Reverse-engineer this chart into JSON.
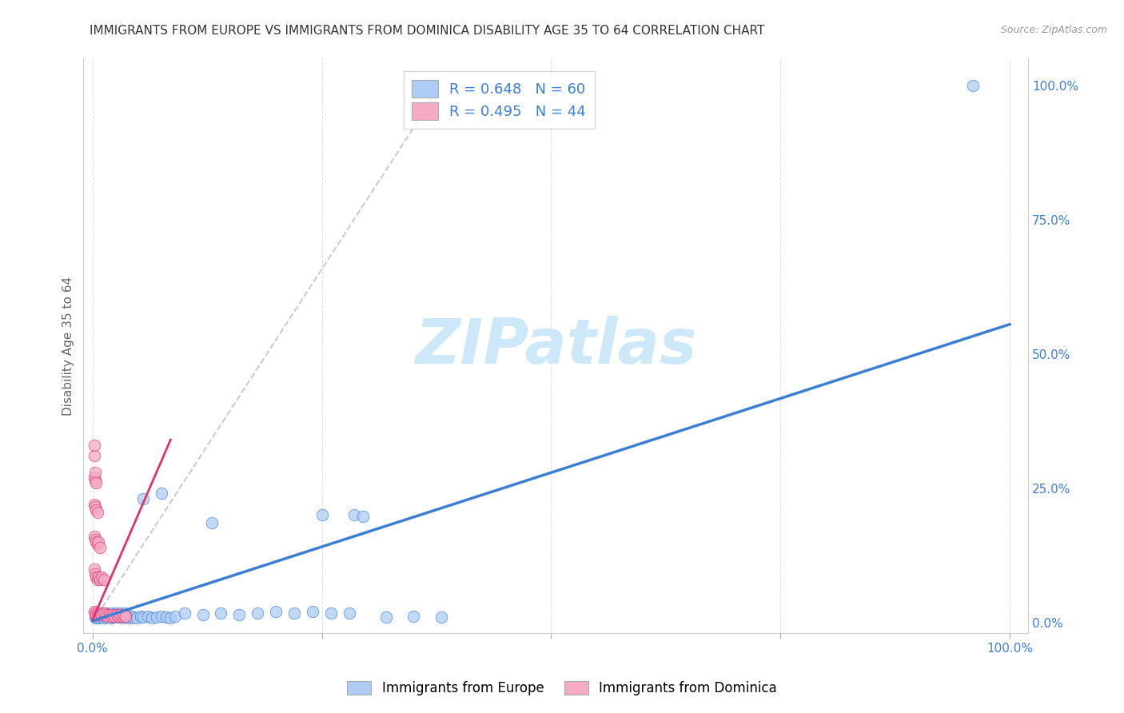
{
  "title": "IMMIGRANTS FROM EUROPE VS IMMIGRANTS FROM DOMINICA DISABILITY AGE 35 TO 64 CORRELATION CHART",
  "source": "Source: ZipAtlas.com",
  "ylabel": "Disability Age 35 to 64",
  "europe_color": "#aeccf5",
  "europe_color_line": "#3a7fd5",
  "dominica_color": "#f5aac5",
  "dominica_color_line": "#e03070",
  "legend_text_color": "#3a7fd5",
  "watermark": "ZIPatlas",
  "watermark_color": "#cde8f8",
  "background_color": "#ffffff",
  "grid_color": "#dddddd",
  "tick_color": "#3a7fd5",
  "ylabel_color": "#666666",
  "title_color": "#333333",
  "source_color": "#999999",
  "diag_line_color": "#cccccc",
  "eu_x": [
    0.003,
    0.004,
    0.005,
    0.006,
    0.007,
    0.008,
    0.01,
    0.012,
    0.015,
    0.018,
    0.02,
    0.022,
    0.025,
    0.028,
    0.032,
    0.035,
    0.038,
    0.04,
    0.042,
    0.045,
    0.048,
    0.052,
    0.055,
    0.06,
    0.065,
    0.07,
    0.075,
    0.08,
    0.085,
    0.09,
    0.01,
    0.012,
    0.015,
    0.018,
    0.02,
    0.022,
    0.025,
    0.028,
    0.03,
    0.035,
    0.055,
    0.075,
    0.13,
    0.25,
    0.285,
    0.295,
    0.1,
    0.12,
    0.14,
    0.16,
    0.18,
    0.2,
    0.22,
    0.24,
    0.26,
    0.28,
    0.32,
    0.35,
    0.38,
    0.96
  ],
  "eu_y": [
    0.01,
    0.008,
    0.012,
    0.008,
    0.015,
    0.01,
    0.012,
    0.008,
    0.01,
    0.012,
    0.008,
    0.01,
    0.012,
    0.01,
    0.008,
    0.012,
    0.01,
    0.008,
    0.012,
    0.01,
    0.008,
    0.012,
    0.01,
    0.012,
    0.008,
    0.01,
    0.012,
    0.01,
    0.008,
    0.012,
    0.018,
    0.015,
    0.018,
    0.015,
    0.018,
    0.015,
    0.018,
    0.015,
    0.018,
    0.018,
    0.23,
    0.24,
    0.185,
    0.2,
    0.2,
    0.198,
    0.018,
    0.015,
    0.018,
    0.015,
    0.018,
    0.02,
    0.018,
    0.02,
    0.018,
    0.018,
    0.01,
    0.012,
    0.01,
    1.0
  ],
  "dom_x": [
    0.002,
    0.003,
    0.004,
    0.005,
    0.006,
    0.008,
    0.01,
    0.012,
    0.014,
    0.016,
    0.018,
    0.02,
    0.022,
    0.024,
    0.026,
    0.028,
    0.03,
    0.032,
    0.034,
    0.036,
    0.002,
    0.003,
    0.004,
    0.005,
    0.006,
    0.008,
    0.01,
    0.012,
    0.002,
    0.003,
    0.004,
    0.005,
    0.006,
    0.008,
    0.002,
    0.003,
    0.004,
    0.005,
    0.002,
    0.003,
    0.002,
    0.002,
    0.003,
    0.004
  ],
  "dom_y": [
    0.02,
    0.018,
    0.015,
    0.018,
    0.015,
    0.018,
    0.015,
    0.018,
    0.015,
    0.012,
    0.015,
    0.012,
    0.015,
    0.012,
    0.015,
    0.012,
    0.015,
    0.012,
    0.015,
    0.012,
    0.1,
    0.09,
    0.085,
    0.08,
    0.085,
    0.08,
    0.085,
    0.08,
    0.16,
    0.155,
    0.15,
    0.145,
    0.15,
    0.14,
    0.22,
    0.215,
    0.21,
    0.205,
    0.27,
    0.265,
    0.31,
    0.33,
    0.28,
    0.26
  ],
  "eu_line_x": [
    0.0,
    1.0
  ],
  "eu_line_y": [
    0.003,
    0.555
  ],
  "dom_line_x": [
    0.0,
    0.085
  ],
  "dom_line_y": [
    0.005,
    0.34
  ],
  "diag_line_x": [
    0.0,
    0.38
  ],
  "diag_line_y": [
    0.0,
    1.0
  ],
  "xlim": [
    -0.01,
    1.02
  ],
  "ylim": [
    -0.02,
    1.05
  ],
  "xticks": [
    0.0,
    0.25,
    0.5,
    0.75,
    1.0
  ],
  "xticklabels": [
    "0.0%",
    "",
    "",
    "",
    "100.0%"
  ],
  "ytick_vals": [
    0.0,
    0.25,
    0.5,
    0.75,
    1.0
  ],
  "ytick_labels": [
    "0.0%",
    "25.0%",
    "50.0%",
    "75.0%",
    "100.0%"
  ]
}
